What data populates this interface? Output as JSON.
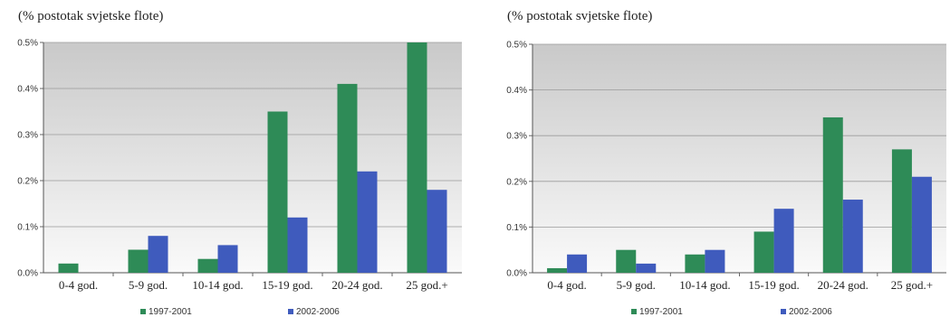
{
  "chart_data": [
    {
      "type": "bar",
      "title": "(% postotak svjetske flote)",
      "categories": [
        "0-4 god.",
        "5-9 god.",
        "10-14 god.",
        "15-19 god.",
        "20-24 god.",
        "25 god.+"
      ],
      "series": [
        {
          "name": "1997-2001",
          "color": "#2e8b57",
          "values": [
            0.02,
            0.05,
            0.03,
            0.35,
            0.41,
            0.5
          ]
        },
        {
          "name": "2002-2006",
          "color": "#3f5bbd",
          "values": [
            0.0,
            0.08,
            0.06,
            0.12,
            0.22,
            0.18
          ]
        }
      ],
      "ylim": [
        0,
        0.5
      ],
      "yticks": [
        "0.0%",
        "0.1%",
        "0.2%",
        "0.3%",
        "0.4%",
        "0.5%"
      ],
      "grid": true,
      "legend": "bottom"
    },
    {
      "type": "bar",
      "title": "(% postotak svjetske flote)",
      "categories": [
        "0-4 god.",
        "5-9 god.",
        "10-14 god.",
        "15-19 god.",
        "20-24 god.",
        "25 god.+"
      ],
      "series": [
        {
          "name": "1997-2001",
          "color": "#2e8b57",
          "values": [
            0.01,
            0.05,
            0.04,
            0.09,
            0.34,
            0.27
          ]
        },
        {
          "name": "2002-2006",
          "color": "#3f5bbd",
          "values": [
            0.04,
            0.02,
            0.05,
            0.14,
            0.16,
            0.21
          ]
        }
      ],
      "ylim": [
        0,
        0.5
      ],
      "yticks": [
        "0.0%",
        "0.1%",
        "0.2%",
        "0.3%",
        "0.4%",
        "0.5%"
      ],
      "grid": true,
      "legend": "bottom"
    }
  ]
}
